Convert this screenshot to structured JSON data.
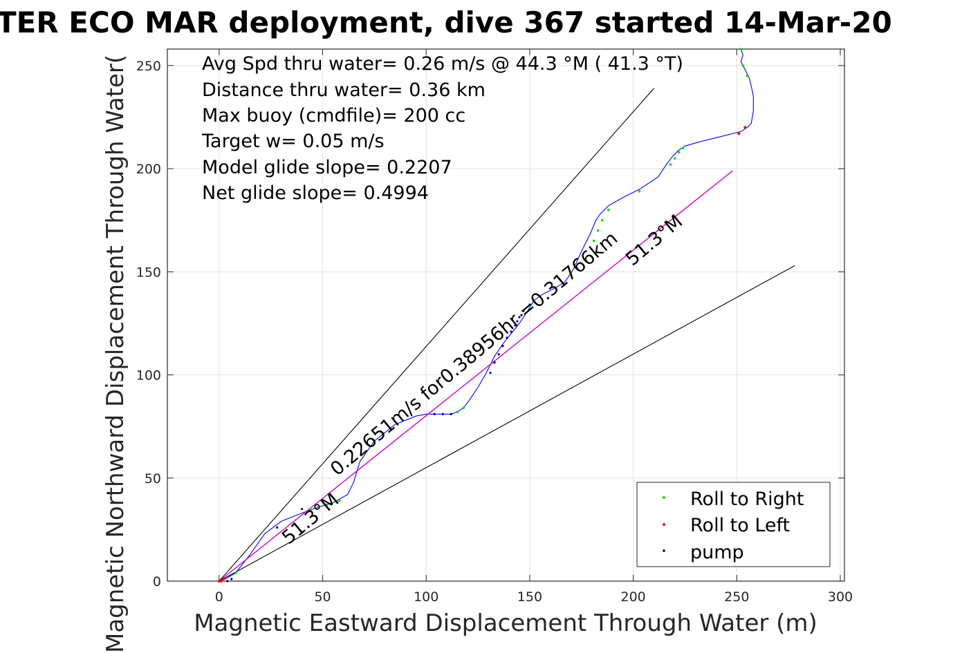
{
  "chart_data": {
    "type": "line",
    "title": "TER ECO MAR deployment, dive 367 started 14-Mar-20",
    "xlabel": "Magnetic Eastward Displacement Through Water (m)",
    "ylabel": "Magnetic Northward Displacement Through Water(",
    "xlim": [
      -25,
      302
    ],
    "ylim": [
      0,
      258
    ],
    "xticks": [
      0,
      50,
      100,
      150,
      200,
      250,
      300
    ],
    "yticks": [
      0,
      50,
      100,
      150,
      200,
      250
    ],
    "grid": true,
    "legend_position": "bottom-right",
    "annotations": [
      "Avg Spd thru water=  0.26 m/s @  44.3 °M ( 41.3 °T)",
      "Distance thru water=  0.36 km",
      "Max buoy (cmdfile)= 200 cc",
      "Target w= 0.05 m/s",
      "Model glide slope= 0.2207",
      "Net glide slope= 0.4994"
    ],
    "rotated_labels": [
      {
        "text": "0.22651m/s for0.38956hr =0.31766km",
        "x": 125,
        "y": 108,
        "rotation_deg": 40
      },
      {
        "text": "51.3°M",
        "x": 212,
        "y": 163,
        "rotation_deg": 40
      },
      {
        "text": "51.3°M",
        "x": 46,
        "y": 28,
        "rotation_deg": 40
      }
    ],
    "colors": {
      "track": "#0000ff",
      "heading": "#cc00cc",
      "bounds": "#000000",
      "roll_right": "#00dd00",
      "roll_left": "#ff0000",
      "pump": "#000080"
    },
    "series": [
      {
        "name": "track",
        "x": [
          0,
          3,
          8,
          15,
          22,
          30,
          40,
          48,
          55,
          62,
          65,
          68,
          75,
          85,
          95,
          100,
          106,
          112,
          115,
          118,
          121,
          125,
          129,
          133,
          137,
          141,
          145,
          149,
          152,
          156,
          162,
          167,
          171,
          175,
          179,
          182,
          184,
          188,
          195,
          203,
          212,
          216,
          219,
          222,
          225,
          232,
          240,
          248,
          252,
          255,
          257,
          258,
          258,
          257,
          256,
          254,
          252,
          253,
          252
        ],
        "y": [
          0,
          1,
          4,
          13,
          23,
          29,
          33,
          36,
          38,
          42,
          48,
          58,
          68,
          76,
          80,
          81,
          81,
          81,
          82,
          84,
          88,
          94,
          101,
          109,
          115,
          120,
          125,
          131,
          136,
          139,
          142,
          145,
          151,
          160,
          168,
          175,
          178,
          182,
          186,
          190,
          196,
          202,
          206,
          209,
          211,
          213,
          215,
          217,
          218,
          220,
          222,
          228,
          235,
          240,
          244,
          248,
          252,
          255,
          258
        ]
      },
      {
        "name": "heading",
        "x": [
          0,
          248
        ],
        "y": [
          0,
          199
        ]
      },
      {
        "name": "bound-upper",
        "x": [
          0,
          210
        ],
        "y": [
          0,
          239
        ]
      },
      {
        "name": "bound-lower",
        "x": [
          0,
          278
        ],
        "y": [
          0,
          153
        ]
      },
      {
        "name": "Roll to Right",
        "x": [
          8,
          44,
          48,
          52,
          58,
          115,
          118,
          150,
          152,
          155,
          181,
          183,
          185,
          188,
          203,
          218,
          220,
          222,
          224,
          252,
          253,
          255
        ],
        "y": [
          4,
          35,
          36,
          37,
          39,
          82,
          84,
          134,
          136,
          138,
          165,
          170,
          175,
          180,
          189,
          202,
          205,
          208,
          210,
          258,
          250,
          245
        ]
      },
      {
        "name": "Roll to Left",
        "x": [
          0,
          1,
          2,
          251,
          254
        ],
        "y": [
          0,
          0,
          1,
          217,
          220
        ]
      },
      {
        "name": "pump",
        "x": [
          4,
          6,
          28,
          40,
          65,
          104,
          108,
          112,
          131,
          133,
          135,
          137,
          139,
          141,
          143,
          144,
          145,
          146,
          147
        ],
        "y": [
          0,
          1,
          26,
          35,
          65,
          81,
          81,
          81,
          101,
          106,
          110,
          114,
          118,
          121,
          124,
          126,
          128,
          129,
          131
        ]
      }
    ]
  }
}
